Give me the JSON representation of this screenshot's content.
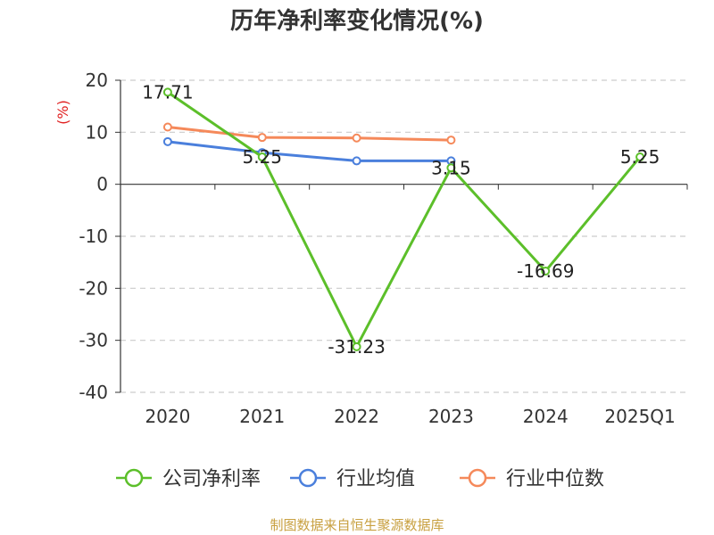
{
  "chart_data": {
    "type": "line",
    "title": "历年净利率变化情况(%)",
    "ylabel": "(%)",
    "categories": [
      "2020",
      "2021",
      "2022",
      "2023",
      "2024",
      "2025Q1"
    ],
    "ylim": [
      -40,
      20
    ],
    "yticks": [
      20,
      10,
      0,
      -10,
      -20,
      -30,
      -40
    ],
    "grid": true,
    "legend_position": "bottom",
    "series": [
      {
        "name": "公司净利率",
        "color": "#5cbf2a",
        "values": [
          17.71,
          5.25,
          -31.23,
          3.15,
          -16.69,
          5.25
        ],
        "labels": [
          "17.71",
          "5.25",
          "-31.23",
          "3.15",
          "-16.69",
          "5.25"
        ]
      },
      {
        "name": "行业均值",
        "color": "#4a7fdc",
        "values": [
          8.2,
          6.1,
          4.5,
          4.5,
          null,
          null
        ]
      },
      {
        "name": "行业中位数",
        "color": "#f5895a",
        "values": [
          11.0,
          9.0,
          8.9,
          8.5,
          null,
          null
        ]
      }
    ]
  },
  "source": "制图数据来自恒生聚源数据库"
}
